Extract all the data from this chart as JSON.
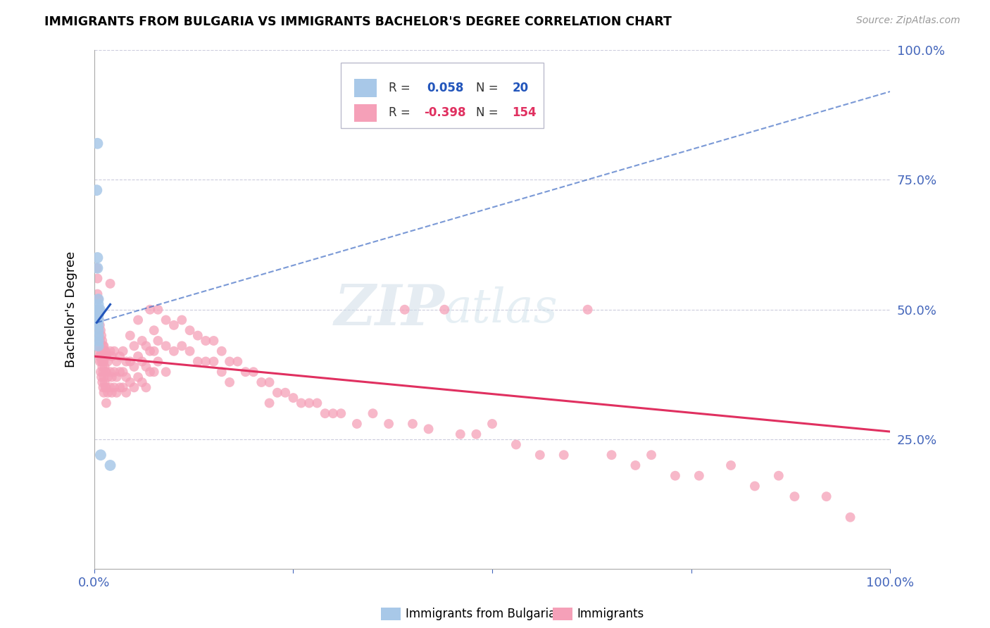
{
  "title": "IMMIGRANTS FROM BULGARIA VS IMMIGRANTS BACHELOR'S DEGREE CORRELATION CHART",
  "source": "Source: ZipAtlas.com",
  "ylabel": "Bachelor's Degree",
  "legend_r_blue": "R =  0.058",
  "legend_n_blue": "N =  20",
  "legend_r_pink": "R = -0.398",
  "legend_n_pink": "N = 154",
  "blue_color": "#a8c8e8",
  "pink_color": "#f5a0b8",
  "blue_line_color": "#2255bb",
  "pink_line_color": "#e03060",
  "blue_scatter": [
    [
      0.004,
      0.82
    ],
    [
      0.003,
      0.73
    ],
    [
      0.004,
      0.6
    ],
    [
      0.004,
      0.58
    ],
    [
      0.005,
      0.52
    ],
    [
      0.005,
      0.51
    ],
    [
      0.005,
      0.5
    ],
    [
      0.005,
      0.5
    ],
    [
      0.005,
      0.49
    ],
    [
      0.005,
      0.49
    ],
    [
      0.005,
      0.48
    ],
    [
      0.005,
      0.48
    ],
    [
      0.005,
      0.47
    ],
    [
      0.005,
      0.46
    ],
    [
      0.005,
      0.45
    ],
    [
      0.005,
      0.44
    ],
    [
      0.005,
      0.43
    ],
    [
      0.007,
      0.5
    ],
    [
      0.008,
      0.22
    ],
    [
      0.02,
      0.2
    ]
  ],
  "pink_scatter": [
    [
      0.003,
      0.58
    ],
    [
      0.004,
      0.56
    ],
    [
      0.004,
      0.53
    ],
    [
      0.004,
      0.5
    ],
    [
      0.005,
      0.52
    ],
    [
      0.005,
      0.49
    ],
    [
      0.005,
      0.46
    ],
    [
      0.005,
      0.44
    ],
    [
      0.006,
      0.48
    ],
    [
      0.006,
      0.45
    ],
    [
      0.006,
      0.43
    ],
    [
      0.006,
      0.41
    ],
    [
      0.007,
      0.47
    ],
    [
      0.007,
      0.44
    ],
    [
      0.007,
      0.42
    ],
    [
      0.007,
      0.4
    ],
    [
      0.008,
      0.46
    ],
    [
      0.008,
      0.43
    ],
    [
      0.008,
      0.41
    ],
    [
      0.008,
      0.38
    ],
    [
      0.009,
      0.45
    ],
    [
      0.009,
      0.42
    ],
    [
      0.009,
      0.4
    ],
    [
      0.009,
      0.37
    ],
    [
      0.01,
      0.44
    ],
    [
      0.01,
      0.41
    ],
    [
      0.01,
      0.39
    ],
    [
      0.01,
      0.36
    ],
    [
      0.011,
      0.43
    ],
    [
      0.011,
      0.4
    ],
    [
      0.011,
      0.38
    ],
    [
      0.011,
      0.35
    ],
    [
      0.012,
      0.43
    ],
    [
      0.012,
      0.4
    ],
    [
      0.012,
      0.37
    ],
    [
      0.012,
      0.34
    ],
    [
      0.013,
      0.42
    ],
    [
      0.013,
      0.39
    ],
    [
      0.013,
      0.36
    ],
    [
      0.014,
      0.42
    ],
    [
      0.014,
      0.38
    ],
    [
      0.014,
      0.35
    ],
    [
      0.015,
      0.41
    ],
    [
      0.015,
      0.38
    ],
    [
      0.015,
      0.35
    ],
    [
      0.015,
      0.32
    ],
    [
      0.017,
      0.4
    ],
    [
      0.017,
      0.37
    ],
    [
      0.017,
      0.34
    ],
    [
      0.02,
      0.55
    ],
    [
      0.02,
      0.42
    ],
    [
      0.02,
      0.38
    ],
    [
      0.02,
      0.35
    ],
    [
      0.022,
      0.41
    ],
    [
      0.022,
      0.37
    ],
    [
      0.022,
      0.34
    ],
    [
      0.025,
      0.42
    ],
    [
      0.025,
      0.38
    ],
    [
      0.025,
      0.35
    ],
    [
      0.028,
      0.4
    ],
    [
      0.028,
      0.37
    ],
    [
      0.028,
      0.34
    ],
    [
      0.032,
      0.41
    ],
    [
      0.032,
      0.38
    ],
    [
      0.032,
      0.35
    ],
    [
      0.036,
      0.42
    ],
    [
      0.036,
      0.38
    ],
    [
      0.036,
      0.35
    ],
    [
      0.04,
      0.4
    ],
    [
      0.04,
      0.37
    ],
    [
      0.04,
      0.34
    ],
    [
      0.045,
      0.45
    ],
    [
      0.045,
      0.4
    ],
    [
      0.045,
      0.36
    ],
    [
      0.05,
      0.43
    ],
    [
      0.05,
      0.39
    ],
    [
      0.05,
      0.35
    ],
    [
      0.055,
      0.48
    ],
    [
      0.055,
      0.41
    ],
    [
      0.055,
      0.37
    ],
    [
      0.06,
      0.44
    ],
    [
      0.06,
      0.4
    ],
    [
      0.06,
      0.36
    ],
    [
      0.065,
      0.43
    ],
    [
      0.065,
      0.39
    ],
    [
      0.065,
      0.35
    ],
    [
      0.07,
      0.5
    ],
    [
      0.07,
      0.42
    ],
    [
      0.07,
      0.38
    ],
    [
      0.075,
      0.46
    ],
    [
      0.075,
      0.42
    ],
    [
      0.075,
      0.38
    ],
    [
      0.08,
      0.5
    ],
    [
      0.08,
      0.44
    ],
    [
      0.08,
      0.4
    ],
    [
      0.09,
      0.48
    ],
    [
      0.09,
      0.43
    ],
    [
      0.09,
      0.38
    ],
    [
      0.1,
      0.47
    ],
    [
      0.1,
      0.42
    ],
    [
      0.11,
      0.48
    ],
    [
      0.11,
      0.43
    ],
    [
      0.12,
      0.46
    ],
    [
      0.12,
      0.42
    ],
    [
      0.13,
      0.45
    ],
    [
      0.13,
      0.4
    ],
    [
      0.14,
      0.44
    ],
    [
      0.14,
      0.4
    ],
    [
      0.15,
      0.44
    ],
    [
      0.15,
      0.4
    ],
    [
      0.16,
      0.42
    ],
    [
      0.16,
      0.38
    ],
    [
      0.17,
      0.4
    ],
    [
      0.17,
      0.36
    ],
    [
      0.18,
      0.4
    ],
    [
      0.19,
      0.38
    ],
    [
      0.2,
      0.38
    ],
    [
      0.21,
      0.36
    ],
    [
      0.22,
      0.36
    ],
    [
      0.22,
      0.32
    ],
    [
      0.23,
      0.34
    ],
    [
      0.24,
      0.34
    ],
    [
      0.25,
      0.33
    ],
    [
      0.26,
      0.32
    ],
    [
      0.27,
      0.32
    ],
    [
      0.28,
      0.32
    ],
    [
      0.29,
      0.3
    ],
    [
      0.3,
      0.3
    ],
    [
      0.31,
      0.3
    ],
    [
      0.33,
      0.28
    ],
    [
      0.35,
      0.3
    ],
    [
      0.37,
      0.28
    ],
    [
      0.39,
      0.5
    ],
    [
      0.4,
      0.28
    ],
    [
      0.42,
      0.27
    ],
    [
      0.44,
      0.5
    ],
    [
      0.46,
      0.26
    ],
    [
      0.48,
      0.26
    ],
    [
      0.5,
      0.28
    ],
    [
      0.53,
      0.24
    ],
    [
      0.56,
      0.22
    ],
    [
      0.59,
      0.22
    ],
    [
      0.62,
      0.5
    ],
    [
      0.65,
      0.22
    ],
    [
      0.68,
      0.2
    ],
    [
      0.7,
      0.22
    ],
    [
      0.73,
      0.18
    ],
    [
      0.76,
      0.18
    ],
    [
      0.8,
      0.2
    ],
    [
      0.83,
      0.16
    ],
    [
      0.86,
      0.18
    ],
    [
      0.88,
      0.14
    ],
    [
      0.92,
      0.14
    ],
    [
      0.95,
      0.1
    ]
  ],
  "blue_line": [
    [
      0.003,
      0.475
    ],
    [
      0.02,
      0.51
    ]
  ],
  "blue_dash_line": [
    [
      0.003,
      0.475
    ],
    [
      1.0,
      0.92
    ]
  ],
  "pink_line": [
    [
      0.0,
      0.41
    ],
    [
      1.0,
      0.265
    ]
  ],
  "xlim": [
    0,
    1.0
  ],
  "ylim": [
    0,
    1.0
  ],
  "background": "#ffffff",
  "grid_color": "#ccccdd",
  "watermark": "ZIPAtlas"
}
